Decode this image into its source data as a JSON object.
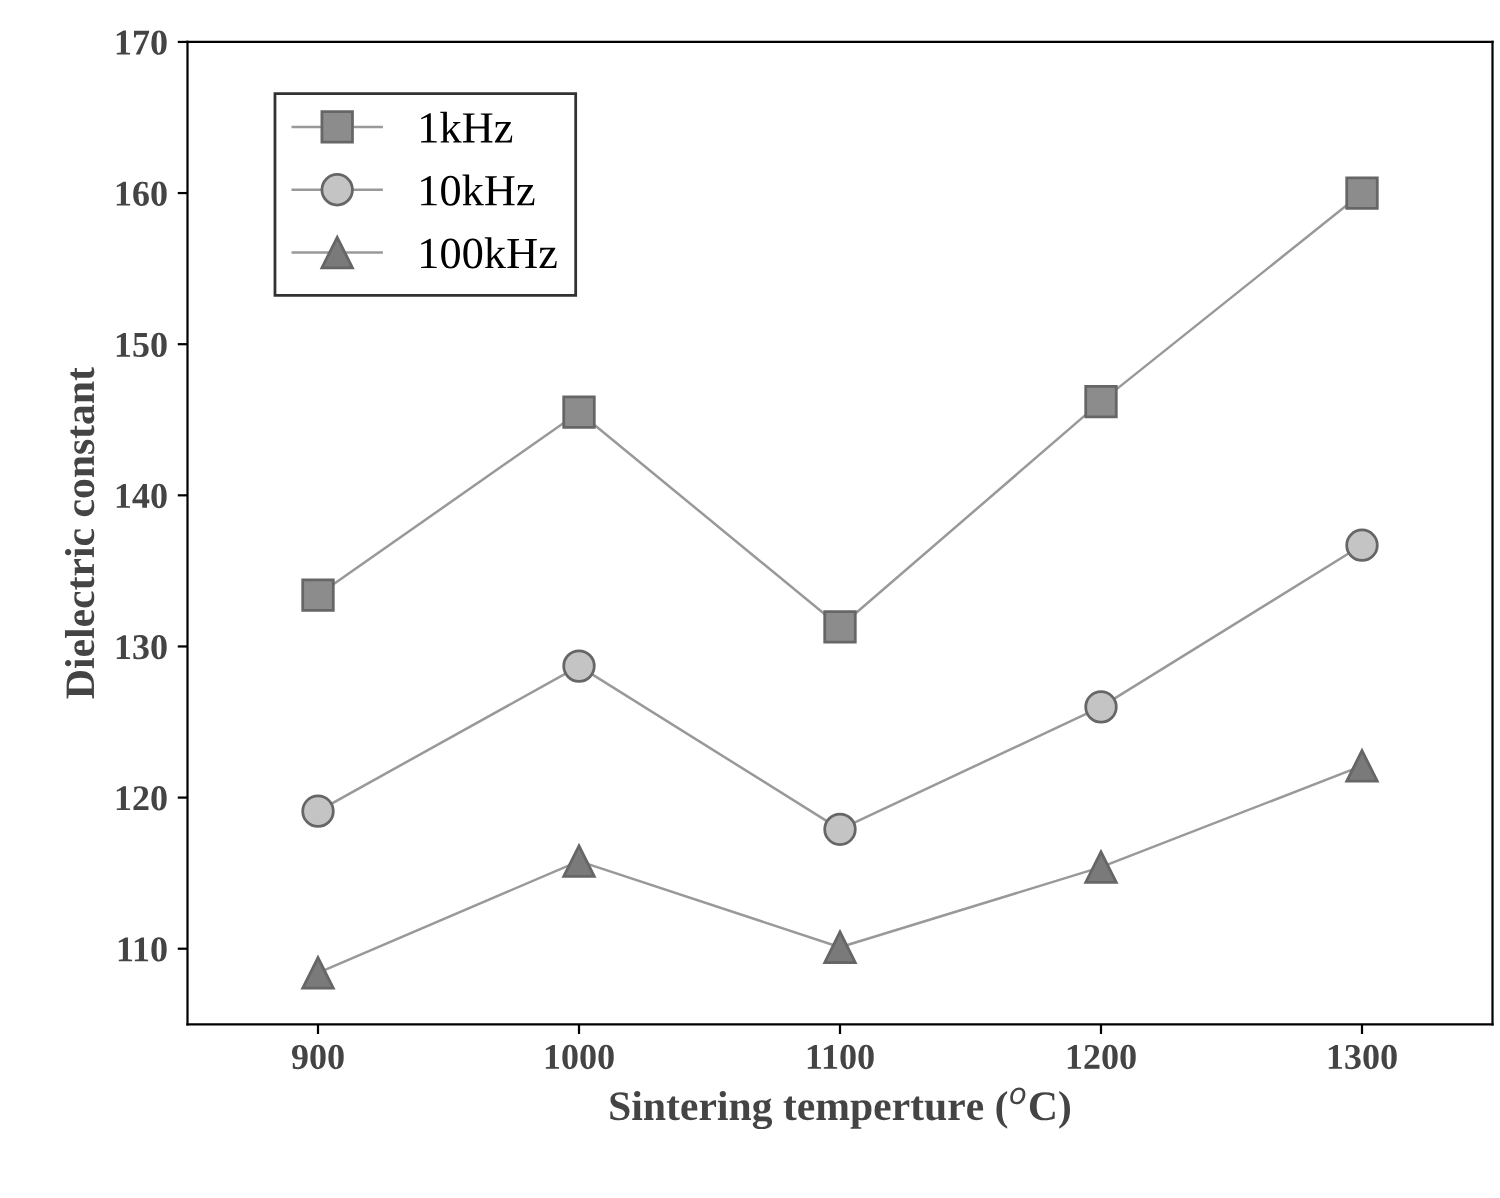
{
  "chart_data": {
    "type": "line",
    "xlabel": "Sintering temperture ($^{o}$C)",
    "ylabel": "Dielectric constant",
    "x": [
      900,
      1000,
      1100,
      1200,
      1300
    ],
    "series": [
      {
        "name": "1kHz",
        "color": "#8c8c8c",
        "marker": "square",
        "values": [
          133.4,
          145.5,
          131.3,
          146.2,
          160
        ]
      },
      {
        "name": "10kHz",
        "color": "#c4c4c4",
        "marker": "circle",
        "values": [
          119.1,
          128.7,
          117.9,
          126.0,
          136.7
        ]
      },
      {
        "name": "100kHz",
        "color": "#7a7a7a",
        "marker": "triangle",
        "values": [
          108.4,
          115.8,
          110.1,
          115.4,
          122.1
        ]
      }
    ],
    "xlim": [
      850,
      1350
    ],
    "xticks": [
      900,
      1000,
      1100,
      1200,
      1300
    ],
    "ylim": [
      105,
      170
    ],
    "yticks": [
      110,
      120,
      130,
      140,
      150,
      160,
      170
    ],
    "grid": false,
    "legend": "top left",
    "line_style": "solid"
  }
}
